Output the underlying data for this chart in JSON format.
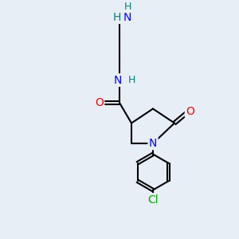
{
  "bg_color": "#e8eef5",
  "atom_colors": {
    "C": "#000000",
    "N": "#0000ff",
    "O": "#ff0000",
    "Cl": "#00aa00",
    "H": "#008080"
  },
  "bond_color": "#000000",
  "bond_width": 1.5,
  "figsize": [
    3.0,
    3.0
  ],
  "dpi": 100
}
